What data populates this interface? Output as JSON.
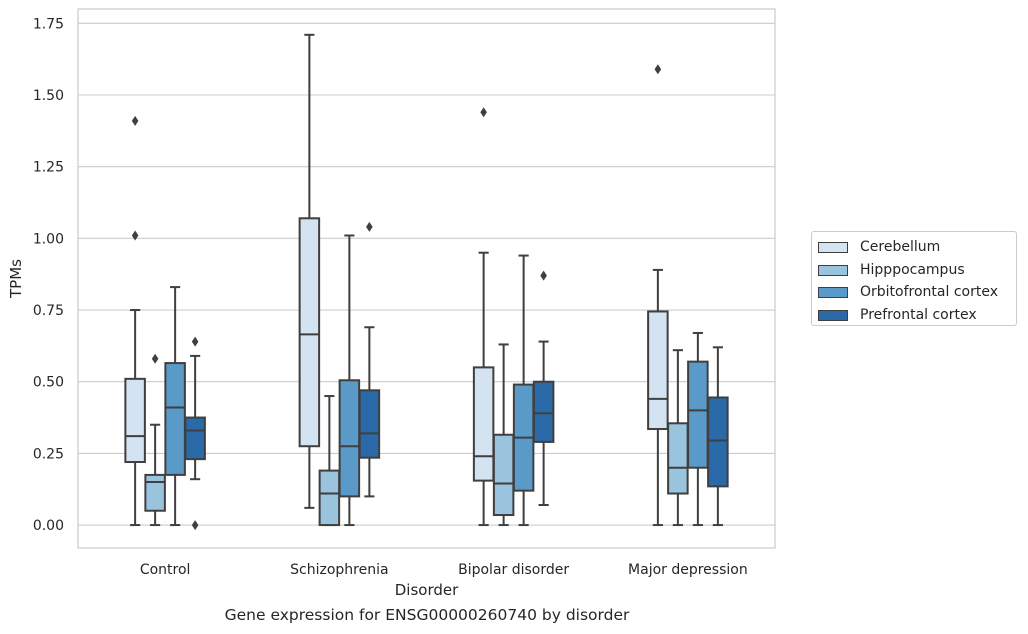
{
  "chart_data": {
    "type": "box",
    "title": "",
    "caption": "Gene expression for ENSG00000260740 by disorder",
    "xlabel": "Disorder",
    "ylabel": "TPMs",
    "ylim": [
      -0.08,
      1.8
    ],
    "yticks": [
      0.0,
      0.25,
      0.5,
      0.75,
      1.0,
      1.25,
      1.5,
      1.75
    ],
    "ytick_labels": [
      "0.00",
      "0.25",
      "0.50",
      "0.75",
      "1.00",
      "1.25",
      "1.50",
      "1.75"
    ],
    "grid": true,
    "legend_position": "right",
    "categories": [
      "Control",
      "Schizophrenia",
      "Bipolar disorder",
      "Major depression"
    ],
    "series": [
      {
        "name": "Cerebellum",
        "color": "#d4e3f1",
        "boxes": [
          {
            "whislo": 0.0,
            "q1": 0.22,
            "med": 0.31,
            "q3": 0.51,
            "whishi": 0.75,
            "fliers": [
              1.01,
              1.41
            ]
          },
          {
            "whislo": 0.06,
            "q1": 0.275,
            "med": 0.665,
            "q3": 1.07,
            "whishi": 1.71,
            "fliers": []
          },
          {
            "whislo": 0.0,
            "q1": 0.155,
            "med": 0.24,
            "q3": 0.55,
            "whishi": 0.95,
            "fliers": [
              1.44
            ]
          },
          {
            "whislo": 0.0,
            "q1": 0.335,
            "med": 0.44,
            "q3": 0.745,
            "whishi": 0.89,
            "fliers": [
              1.59
            ]
          }
        ]
      },
      {
        "name": "Hipppocampus",
        "color": "#9ac3dd",
        "boxes": [
          {
            "whislo": 0.0,
            "q1": 0.05,
            "med": 0.15,
            "q3": 0.175,
            "whishi": 0.35,
            "fliers": [
              0.58
            ]
          },
          {
            "whislo": 0.0,
            "q1": 0.0,
            "med": 0.11,
            "q3": 0.19,
            "whishi": 0.45,
            "fliers": []
          },
          {
            "whislo": 0.0,
            "q1": 0.035,
            "med": 0.145,
            "q3": 0.315,
            "whishi": 0.63,
            "fliers": []
          },
          {
            "whislo": 0.0,
            "q1": 0.11,
            "med": 0.2,
            "q3": 0.355,
            "whishi": 0.61,
            "fliers": []
          }
        ]
      },
      {
        "name": "Orbitofrontal cortex",
        "color": "#5a9ac8",
        "boxes": [
          {
            "whislo": 0.0,
            "q1": 0.175,
            "med": 0.41,
            "q3": 0.565,
            "whishi": 0.83,
            "fliers": []
          },
          {
            "whislo": 0.0,
            "q1": 0.1,
            "med": 0.275,
            "q3": 0.505,
            "whishi": 1.01,
            "fliers": []
          },
          {
            "whislo": 0.0,
            "q1": 0.12,
            "med": 0.305,
            "q3": 0.49,
            "whishi": 0.94,
            "fliers": []
          },
          {
            "whislo": 0.0,
            "q1": 0.2,
            "med": 0.4,
            "q3": 0.57,
            "whishi": 0.67,
            "fliers": []
          }
        ]
      },
      {
        "name": "Prefrontal cortex",
        "color": "#2b6aa8",
        "boxes": [
          {
            "whislo": 0.16,
            "q1": 0.23,
            "med": 0.33,
            "q3": 0.375,
            "whishi": 0.59,
            "fliers": [
              0.0,
              0.64
            ]
          },
          {
            "whislo": 0.1,
            "q1": 0.235,
            "med": 0.32,
            "q3": 0.47,
            "whishi": 0.69,
            "fliers": [
              1.04
            ]
          },
          {
            "whislo": 0.07,
            "q1": 0.29,
            "med": 0.39,
            "q3": 0.5,
            "whishi": 0.64,
            "fliers": [
              0.87
            ]
          },
          {
            "whislo": 0.0,
            "q1": 0.135,
            "med": 0.295,
            "q3": 0.445,
            "whishi": 0.62,
            "fliers": []
          }
        ]
      }
    ]
  }
}
